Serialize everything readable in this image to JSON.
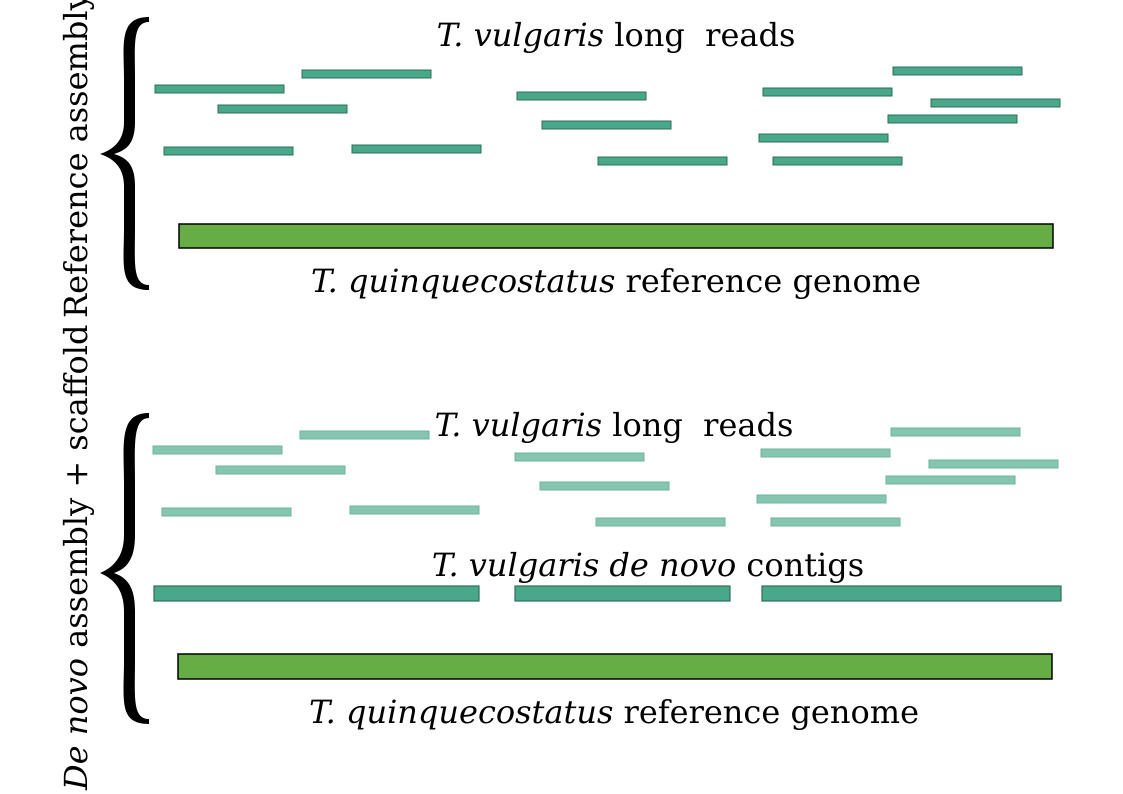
{
  "colors": {
    "read_dark": "#4aa88a",
    "read_light": "#86c6b0",
    "contig": "#4aa88a",
    "reference_genome": "#67ad46",
    "outline": "#2f6e58",
    "genome_outline": "#000000",
    "brace": "#000000"
  },
  "panels": [
    {
      "side_label_italic": "",
      "side_label": "Reference assembly",
      "reads_label": {
        "italic": "T. vulgaris",
        "normal": " long  reads"
      },
      "contigs_label": null,
      "reference_label": {
        "italic": "T. quinquecostatus",
        "normal": " reference genome"
      }
    },
    {
      "side_label_italic": "De novo",
      "side_label": " assembly + scaffold",
      "reads_label": {
        "italic": "T. vulgaris",
        "normal": " long  reads"
      },
      "contigs_label": {
        "italic": "T. vulgaris de novo",
        "normal": " contigs"
      },
      "reference_label": {
        "italic": "T. quinquecostatus",
        "normal": " reference genome"
      }
    }
  ]
}
